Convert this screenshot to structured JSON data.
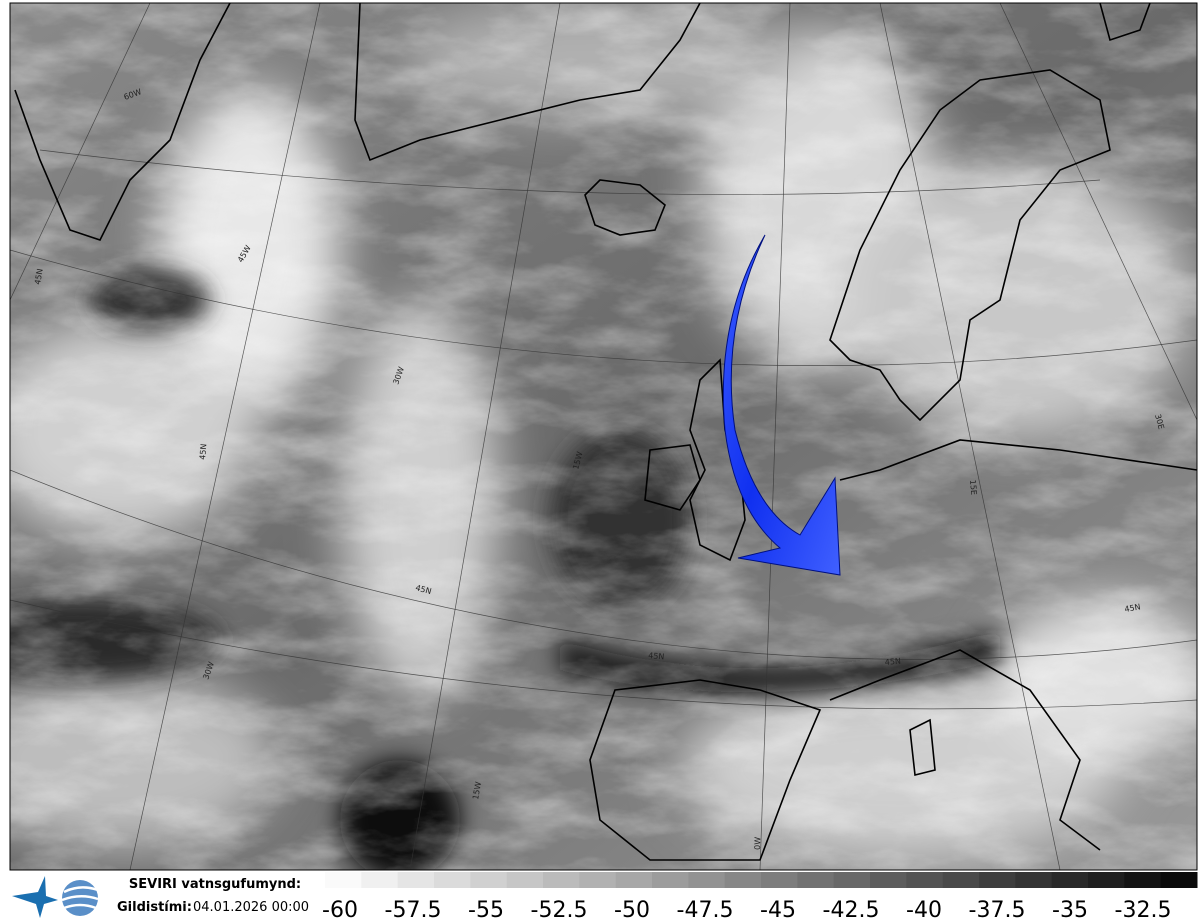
{
  "legend": {
    "product": "SEVIRI vatnsgufumynd:",
    "valid_label": "Gildistími:",
    "valid_time": "04.01.2026 00:00",
    "scale": [
      -60,
      -57.5,
      -55,
      -52.5,
      -50,
      -47.5,
      -45,
      -42.5,
      -40,
      -37.5,
      -35,
      -32.5
    ]
  },
  "map": {
    "grid_labels": [
      "60W",
      "45W",
      "45N",
      "30W",
      "45N",
      "15W",
      "45N",
      "45N",
      "0W",
      "15E",
      "30E",
      "45N",
      "45N",
      "30W",
      "15W"
    ]
  }
}
